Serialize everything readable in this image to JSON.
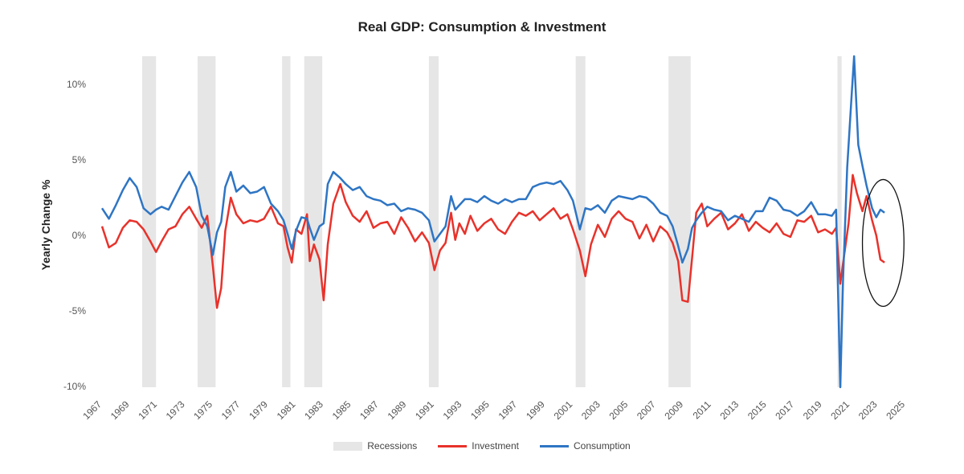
{
  "chart_data": {
    "type": "line",
    "title": "Real GDP: Consumption & Investment",
    "ylabel": "Yearly Change %",
    "xlabel": "",
    "xlim": [
      1967,
      2025
    ],
    "ylim": [
      -10,
      12
    ],
    "y_ticks": [
      10,
      5,
      0,
      -5,
      -10
    ],
    "y_tick_labels": [
      "10%",
      "5%",
      "0%",
      "-5%",
      "-10%"
    ],
    "x_ticks": [
      1967,
      1969,
      1971,
      1973,
      1975,
      1977,
      1979,
      1981,
      1983,
      1985,
      1987,
      1989,
      1991,
      1993,
      1995,
      1997,
      1999,
      2001,
      2003,
      2005,
      2007,
      2009,
      2011,
      2013,
      2015,
      2017,
      2019,
      2021,
      2023,
      2025
    ],
    "x_tick_labels": [
      "1967",
      "1969",
      "1971",
      "1973",
      "1975",
      "1977",
      "1979",
      "1981",
      "1983",
      "1985",
      "1987",
      "1989",
      "1991",
      "1993",
      "1995",
      "1997",
      "1999",
      "2001",
      "2003",
      "2005",
      "2007",
      "2009",
      "2011",
      "2013",
      "2015",
      "2017",
      "2019",
      "2021",
      "2023",
      "2025"
    ],
    "gridlines": false,
    "legend_position": "bottom",
    "recessions": [
      [
        1969.9,
        1970.9
      ],
      [
        1973.9,
        1975.2
      ],
      [
        1980.0,
        1980.6
      ],
      [
        1981.6,
        1982.9
      ],
      [
        1990.6,
        1991.3
      ],
      [
        2001.2,
        2001.9
      ],
      [
        2007.9,
        2009.5
      ],
      [
        2020.1,
        2020.4
      ]
    ],
    "annotation": {
      "type": "ellipse",
      "center": [
        2023.4,
        -0.5
      ],
      "radius_x": 1.5,
      "radius_y": 4.2
    },
    "series": [
      {
        "name": "Recessions",
        "kind": "shaded",
        "color": "#e6e6e6"
      },
      {
        "name": "Investment",
        "color": "#e8322b",
        "points": [
          [
            1967.0,
            0.6
          ],
          [
            1967.5,
            -0.8
          ],
          [
            1968.0,
            -0.5
          ],
          [
            1968.5,
            0.5
          ],
          [
            1969.0,
            1.0
          ],
          [
            1969.5,
            0.9
          ],
          [
            1970.0,
            0.4
          ],
          [
            1970.5,
            -0.4
          ],
          [
            1970.9,
            -1.1
          ],
          [
            1971.3,
            -0.4
          ],
          [
            1971.8,
            0.4
          ],
          [
            1972.3,
            0.6
          ],
          [
            1972.8,
            1.4
          ],
          [
            1973.3,
            1.9
          ],
          [
            1973.8,
            1.1
          ],
          [
            1974.2,
            0.5
          ],
          [
            1974.6,
            1.3
          ],
          [
            1975.0,
            -2.0
          ],
          [
            1975.3,
            -4.8
          ],
          [
            1975.6,
            -3.5
          ],
          [
            1975.9,
            0.3
          ],
          [
            1976.3,
            2.5
          ],
          [
            1976.7,
            1.4
          ],
          [
            1977.2,
            0.8
          ],
          [
            1977.7,
            1.0
          ],
          [
            1978.2,
            0.9
          ],
          [
            1978.7,
            1.1
          ],
          [
            1979.2,
            1.9
          ],
          [
            1979.7,
            0.8
          ],
          [
            1980.1,
            0.6
          ],
          [
            1980.4,
            -0.8
          ],
          [
            1980.7,
            -1.8
          ],
          [
            1981.0,
            0.4
          ],
          [
            1981.4,
            0.1
          ],
          [
            1981.8,
            1.4
          ],
          [
            1982.0,
            -1.7
          ],
          [
            1982.3,
            -0.6
          ],
          [
            1982.7,
            -1.6
          ],
          [
            1983.0,
            -4.3
          ],
          [
            1983.3,
            -0.6
          ],
          [
            1983.7,
            2.1
          ],
          [
            1984.2,
            3.4
          ],
          [
            1984.6,
            2.2
          ],
          [
            1985.1,
            1.3
          ],
          [
            1985.6,
            0.9
          ],
          [
            1986.1,
            1.6
          ],
          [
            1986.6,
            0.5
          ],
          [
            1987.1,
            0.8
          ],
          [
            1987.6,
            0.9
          ],
          [
            1988.1,
            0.1
          ],
          [
            1988.6,
            1.2
          ],
          [
            1989.1,
            0.5
          ],
          [
            1989.6,
            -0.4
          ],
          [
            1990.1,
            0.2
          ],
          [
            1990.6,
            -0.5
          ],
          [
            1991.0,
            -2.3
          ],
          [
            1991.4,
            -1.0
          ],
          [
            1991.8,
            -0.5
          ],
          [
            1992.2,
            1.5
          ],
          [
            1992.5,
            -0.3
          ],
          [
            1992.8,
            0.8
          ],
          [
            1993.2,
            0.1
          ],
          [
            1993.6,
            1.3
          ],
          [
            1994.1,
            0.3
          ],
          [
            1994.6,
            0.8
          ],
          [
            1995.1,
            1.1
          ],
          [
            1995.6,
            0.4
          ],
          [
            1996.1,
            0.1
          ],
          [
            1996.6,
            0.9
          ],
          [
            1997.1,
            1.5
          ],
          [
            1997.6,
            1.3
          ],
          [
            1998.1,
            1.6
          ],
          [
            1998.6,
            1.0
          ],
          [
            1999.1,
            1.4
          ],
          [
            1999.6,
            1.8
          ],
          [
            2000.1,
            1.1
          ],
          [
            2000.6,
            1.4
          ],
          [
            2001.0,
            0.4
          ],
          [
            2001.5,
            -1.0
          ],
          [
            2001.9,
            -2.7
          ],
          [
            2002.3,
            -0.6
          ],
          [
            2002.8,
            0.7
          ],
          [
            2003.3,
            -0.1
          ],
          [
            2003.8,
            1.1
          ],
          [
            2004.3,
            1.6
          ],
          [
            2004.8,
            1.1
          ],
          [
            2005.3,
            0.9
          ],
          [
            2005.8,
            -0.2
          ],
          [
            2006.3,
            0.7
          ],
          [
            2006.8,
            -0.4
          ],
          [
            2007.3,
            0.6
          ],
          [
            2007.8,
            0.2
          ],
          [
            2008.2,
            -0.5
          ],
          [
            2008.6,
            -1.7
          ],
          [
            2008.9,
            -4.3
          ],
          [
            2009.3,
            -4.4
          ],
          [
            2009.6,
            -1.5
          ],
          [
            2009.9,
            1.5
          ],
          [
            2010.3,
            2.1
          ],
          [
            2010.7,
            0.6
          ],
          [
            2011.2,
            1.1
          ],
          [
            2011.7,
            1.5
          ],
          [
            2012.2,
            0.4
          ],
          [
            2012.7,
            0.8
          ],
          [
            2013.2,
            1.4
          ],
          [
            2013.7,
            0.3
          ],
          [
            2014.2,
            0.9
          ],
          [
            2014.7,
            0.5
          ],
          [
            2015.2,
            0.2
          ],
          [
            2015.7,
            0.8
          ],
          [
            2016.2,
            0.1
          ],
          [
            2016.7,
            -0.1
          ],
          [
            2017.2,
            1.0
          ],
          [
            2017.7,
            0.9
          ],
          [
            2018.2,
            1.3
          ],
          [
            2018.7,
            0.2
          ],
          [
            2019.2,
            0.4
          ],
          [
            2019.7,
            0.1
          ],
          [
            2020.0,
            0.5
          ],
          [
            2020.3,
            -3.2
          ],
          [
            2020.6,
            -1.2
          ],
          [
            2020.9,
            0.8
          ],
          [
            2021.2,
            4.0
          ],
          [
            2021.5,
            2.8
          ],
          [
            2021.9,
            1.6
          ],
          [
            2022.2,
            2.6
          ],
          [
            2022.6,
            1.0
          ],
          [
            2022.9,
            0.0
          ],
          [
            2023.2,
            -1.6
          ],
          [
            2023.5,
            -1.8
          ]
        ]
      },
      {
        "name": "Consumption",
        "color": "#2e75c4",
        "points": [
          [
            1967.0,
            1.8
          ],
          [
            1967.5,
            1.1
          ],
          [
            1968.0,
            2.0
          ],
          [
            1968.5,
            3.0
          ],
          [
            1969.0,
            3.8
          ],
          [
            1969.5,
            3.2
          ],
          [
            1970.0,
            1.8
          ],
          [
            1970.5,
            1.4
          ],
          [
            1970.9,
            1.7
          ],
          [
            1971.3,
            1.9
          ],
          [
            1971.8,
            1.7
          ],
          [
            1972.3,
            2.6
          ],
          [
            1972.8,
            3.5
          ],
          [
            1973.3,
            4.2
          ],
          [
            1973.8,
            3.2
          ],
          [
            1974.2,
            1.3
          ],
          [
            1974.6,
            0.6
          ],
          [
            1975.0,
            -1.3
          ],
          [
            1975.3,
            0.2
          ],
          [
            1975.6,
            0.9
          ],
          [
            1975.9,
            3.2
          ],
          [
            1976.3,
            4.2
          ],
          [
            1976.7,
            2.9
          ],
          [
            1977.2,
            3.3
          ],
          [
            1977.7,
            2.8
          ],
          [
            1978.2,
            2.9
          ],
          [
            1978.7,
            3.2
          ],
          [
            1979.2,
            2.1
          ],
          [
            1979.7,
            1.6
          ],
          [
            1980.1,
            1.0
          ],
          [
            1980.4,
            0.1
          ],
          [
            1980.7,
            -0.9
          ],
          [
            1981.0,
            0.3
          ],
          [
            1981.4,
            1.2
          ],
          [
            1981.8,
            1.1
          ],
          [
            1982.0,
            0.5
          ],
          [
            1982.3,
            -0.3
          ],
          [
            1982.7,
            0.6
          ],
          [
            1983.0,
            0.8
          ],
          [
            1983.3,
            3.4
          ],
          [
            1983.7,
            4.2
          ],
          [
            1984.2,
            3.8
          ],
          [
            1984.6,
            3.4
          ],
          [
            1985.1,
            3.0
          ],
          [
            1985.6,
            3.2
          ],
          [
            1986.1,
            2.6
          ],
          [
            1986.6,
            2.4
          ],
          [
            1987.1,
            2.3
          ],
          [
            1987.6,
            2.0
          ],
          [
            1988.1,
            2.1
          ],
          [
            1988.6,
            1.6
          ],
          [
            1989.1,
            1.8
          ],
          [
            1989.6,
            1.7
          ],
          [
            1990.1,
            1.5
          ],
          [
            1990.6,
            1.0
          ],
          [
            1991.0,
            -0.4
          ],
          [
            1991.4,
            0.1
          ],
          [
            1991.8,
            0.6
          ],
          [
            1992.2,
            2.6
          ],
          [
            1992.5,
            1.7
          ],
          [
            1992.8,
            2.0
          ],
          [
            1993.2,
            2.4
          ],
          [
            1993.6,
            2.4
          ],
          [
            1994.1,
            2.2
          ],
          [
            1994.6,
            2.6
          ],
          [
            1995.1,
            2.3
          ],
          [
            1995.6,
            2.1
          ],
          [
            1996.1,
            2.4
          ],
          [
            1996.6,
            2.2
          ],
          [
            1997.1,
            2.4
          ],
          [
            1997.6,
            2.4
          ],
          [
            1998.1,
            3.2
          ],
          [
            1998.6,
            3.4
          ],
          [
            1999.1,
            3.5
          ],
          [
            1999.6,
            3.4
          ],
          [
            2000.1,
            3.6
          ],
          [
            2000.6,
            3.0
          ],
          [
            2001.0,
            2.3
          ],
          [
            2001.5,
            0.4
          ],
          [
            2001.9,
            1.8
          ],
          [
            2002.3,
            1.7
          ],
          [
            2002.8,
            2.0
          ],
          [
            2003.3,
            1.5
          ],
          [
            2003.8,
            2.3
          ],
          [
            2004.3,
            2.6
          ],
          [
            2004.8,
            2.5
          ],
          [
            2005.3,
            2.4
          ],
          [
            2005.8,
            2.6
          ],
          [
            2006.3,
            2.5
          ],
          [
            2006.8,
            2.1
          ],
          [
            2007.3,
            1.5
          ],
          [
            2007.8,
            1.3
          ],
          [
            2008.2,
            0.6
          ],
          [
            2008.6,
            -0.7
          ],
          [
            2008.9,
            -1.8
          ],
          [
            2009.3,
            -0.9
          ],
          [
            2009.6,
            0.5
          ],
          [
            2009.9,
            1.0
          ],
          [
            2010.3,
            1.5
          ],
          [
            2010.7,
            1.9
          ],
          [
            2011.2,
            1.7
          ],
          [
            2011.7,
            1.6
          ],
          [
            2012.2,
            1.0
          ],
          [
            2012.7,
            1.3
          ],
          [
            2013.2,
            1.1
          ],
          [
            2013.7,
            0.9
          ],
          [
            2014.2,
            1.6
          ],
          [
            2014.7,
            1.6
          ],
          [
            2015.2,
            2.5
          ],
          [
            2015.7,
            2.3
          ],
          [
            2016.2,
            1.7
          ],
          [
            2016.7,
            1.6
          ],
          [
            2017.2,
            1.3
          ],
          [
            2017.7,
            1.6
          ],
          [
            2018.2,
            2.2
          ],
          [
            2018.7,
            1.4
          ],
          [
            2019.2,
            1.4
          ],
          [
            2019.7,
            1.3
          ],
          [
            2020.0,
            1.7
          ],
          [
            2020.3,
            -10.2
          ],
          [
            2020.5,
            -3.0
          ],
          [
            2020.8,
            4.5
          ],
          [
            2021.1,
            9.0
          ],
          [
            2021.3,
            12.2
          ],
          [
            2021.6,
            6.0
          ],
          [
            2021.9,
            4.6
          ],
          [
            2022.2,
            3.3
          ],
          [
            2022.6,
            1.8
          ],
          [
            2022.9,
            1.2
          ],
          [
            2023.2,
            1.7
          ],
          [
            2023.5,
            1.5
          ]
        ]
      }
    ]
  }
}
